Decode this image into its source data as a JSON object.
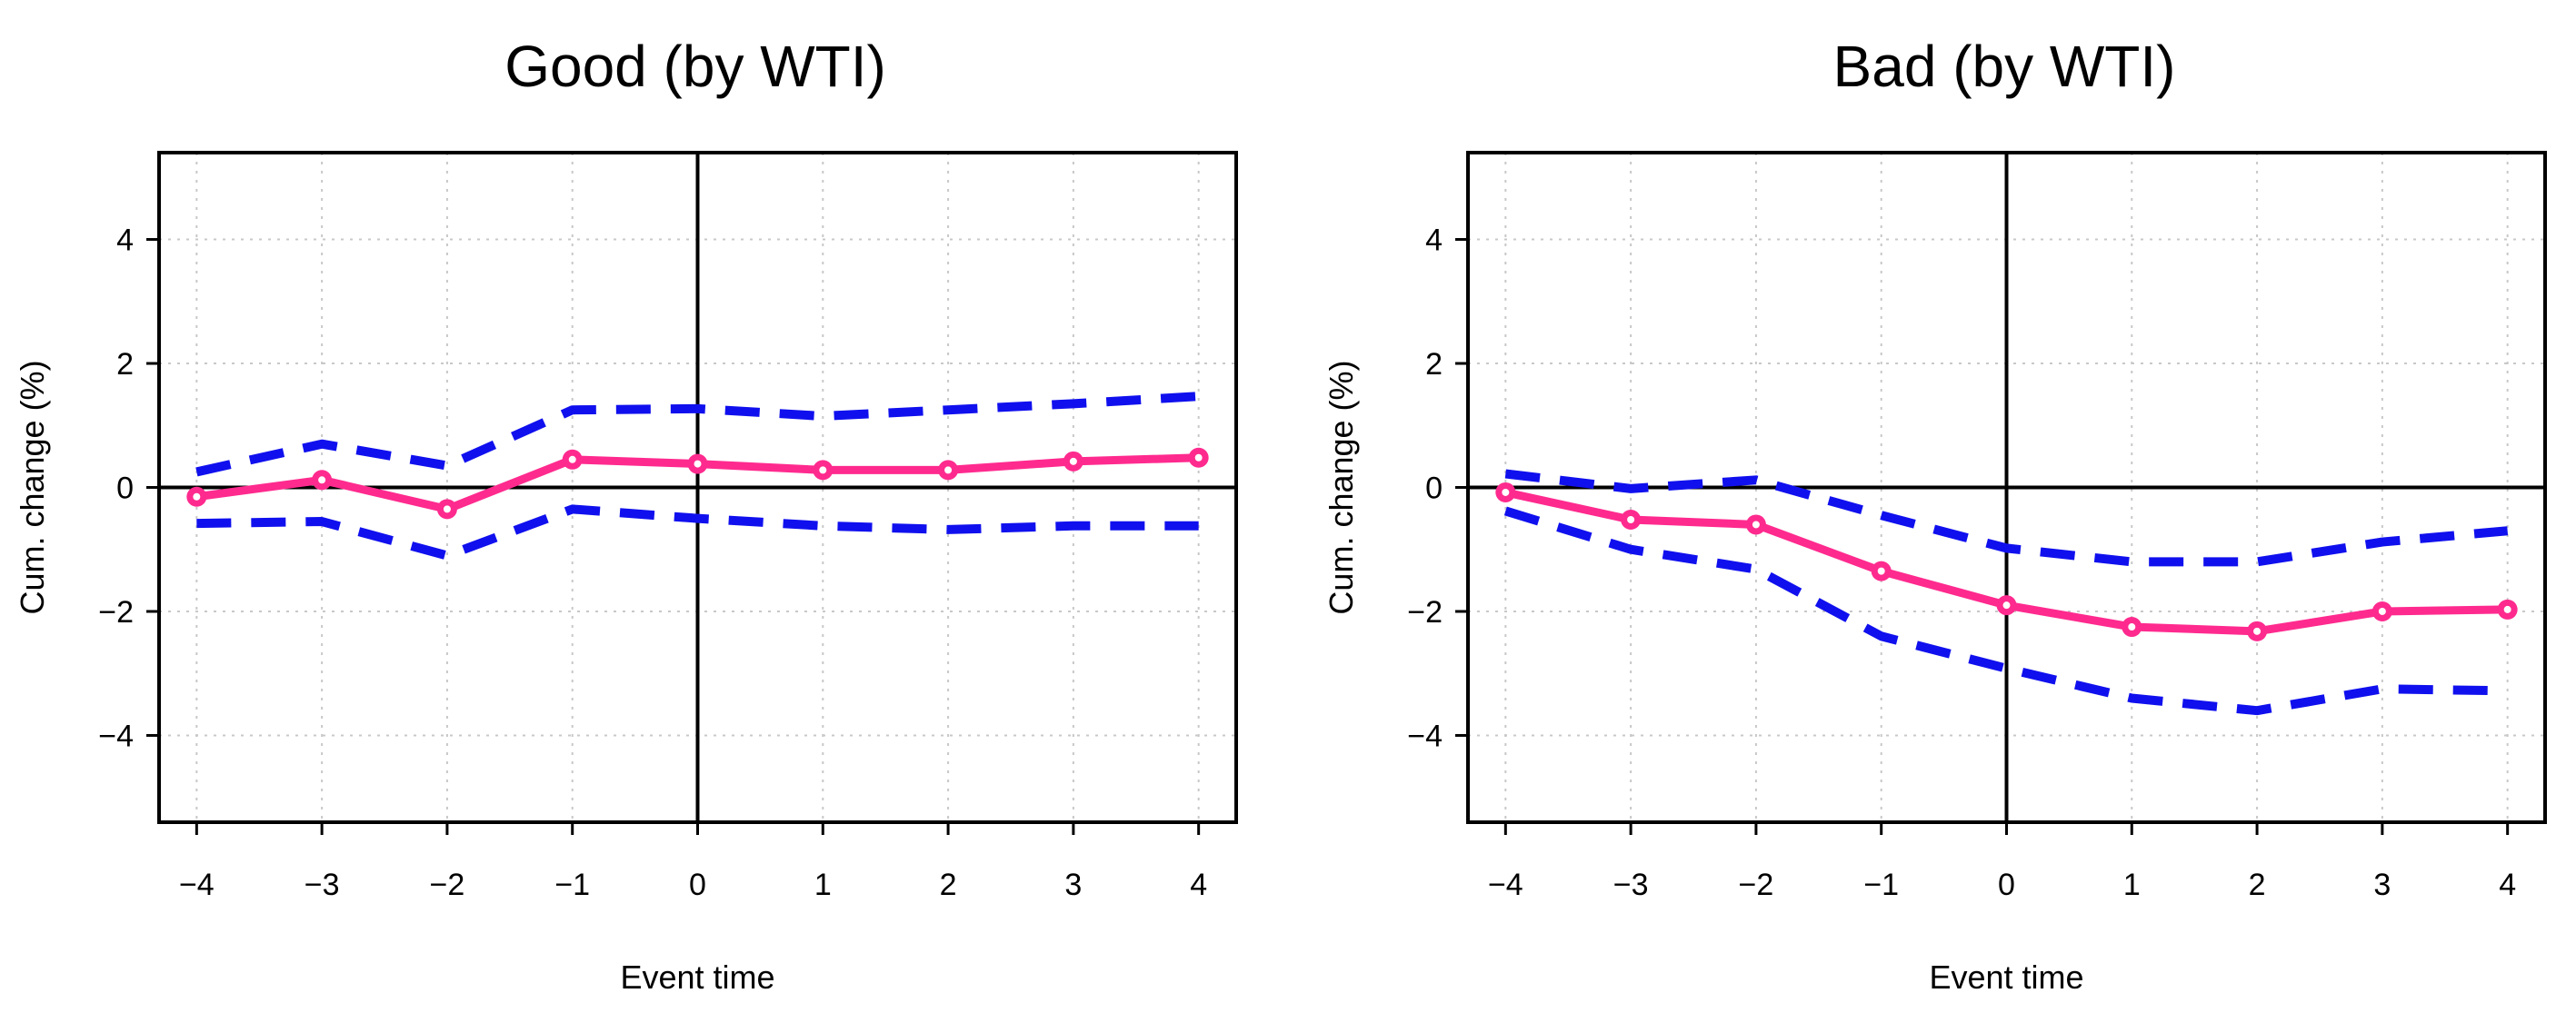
{
  "colors": {
    "estimate": "#ff2a8e",
    "confidence_band": "#1010ee",
    "axis": "#000000",
    "grid": "#c8c8c8"
  },
  "chart_data": [
    {
      "type": "line",
      "title": "Good (by WTI)",
      "xlabel": "Event time",
      "ylabel": "Cum. change (%)",
      "x": [
        -4,
        -3,
        -2,
        -1,
        0,
        1,
        2,
        3,
        4
      ],
      "xlim": [
        -4.3,
        4.3
      ],
      "ylim": [
        -5.4,
        5.4
      ],
      "xticks": [
        "−4",
        "−3",
        "−2",
        "−1",
        "0",
        "1",
        "2",
        "3",
        "4"
      ],
      "yticks": [
        {
          "value": 4,
          "label": "4"
        },
        {
          "value": 2,
          "label": "2"
        },
        {
          "value": 0,
          "label": "0"
        },
        {
          "value": -2,
          "label": "−2"
        },
        {
          "value": -4,
          "label": "−4"
        }
      ],
      "series": [
        {
          "name": "estimate",
          "style": "solid-markers",
          "values": [
            -0.15,
            0.12,
            -0.35,
            0.45,
            0.38,
            0.28,
            0.28,
            0.42,
            0.48
          ]
        },
        {
          "name": "upper",
          "style": "dashed",
          "values": [
            0.25,
            0.7,
            0.35,
            1.25,
            1.27,
            1.15,
            1.25,
            1.35,
            1.47
          ]
        },
        {
          "name": "lower",
          "style": "dashed",
          "values": [
            -0.58,
            -0.55,
            -1.1,
            -0.35,
            -0.5,
            -0.62,
            -0.68,
            -0.62,
            -0.62
          ]
        }
      ]
    },
    {
      "type": "line",
      "title": "Bad (by WTI)",
      "xlabel": "Event time",
      "ylabel": "Cum. change (%)",
      "x": [
        -4,
        -3,
        -2,
        -1,
        0,
        1,
        2,
        3,
        4
      ],
      "xlim": [
        -4.3,
        4.3
      ],
      "ylim": [
        -5.4,
        5.4
      ],
      "xticks": [
        "−4",
        "−3",
        "−2",
        "−1",
        "0",
        "1",
        "2",
        "3",
        "4"
      ],
      "yticks": [
        {
          "value": 4,
          "label": "4"
        },
        {
          "value": 2,
          "label": "2"
        },
        {
          "value": 0,
          "label": "0"
        },
        {
          "value": -2,
          "label": "−2"
        },
        {
          "value": -4,
          "label": "−4"
        }
      ],
      "series": [
        {
          "name": "estimate",
          "style": "solid-markers",
          "values": [
            -0.08,
            -0.52,
            -0.6,
            -1.35,
            -1.9,
            -2.25,
            -2.32,
            -2.0,
            -1.97
          ]
        },
        {
          "name": "upper",
          "style": "dashed",
          "values": [
            0.22,
            -0.02,
            0.12,
            -0.45,
            -0.98,
            -1.2,
            -1.2,
            -0.88,
            -0.7
          ]
        },
        {
          "name": "lower",
          "style": "dashed",
          "values": [
            -0.38,
            -1.0,
            -1.32,
            -2.4,
            -2.92,
            -3.4,
            -3.6,
            -3.25,
            -3.28
          ]
        }
      ]
    }
  ]
}
